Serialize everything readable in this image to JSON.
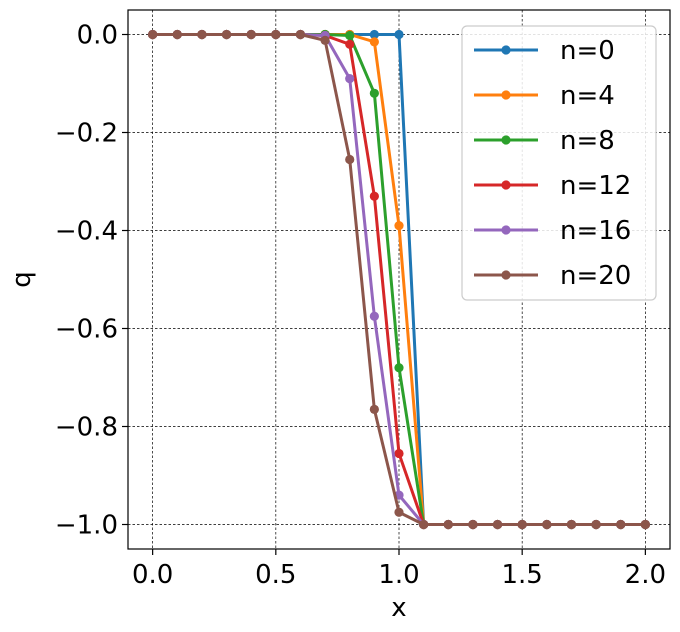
{
  "chart_data": {
    "type": "line",
    "xlabel": "x",
    "ylabel": "q",
    "xlim": [
      -0.1,
      2.1
    ],
    "ylim": [
      -1.05,
      0.05
    ],
    "x_ticks": [
      0.0,
      0.5,
      1.0,
      1.5,
      2.0
    ],
    "x_tick_labels": [
      "0.0",
      "0.5",
      "1.0",
      "1.5",
      "2.0"
    ],
    "y_ticks": [
      0.0,
      -0.2,
      -0.4,
      -0.6,
      -0.8,
      -1.0
    ],
    "y_tick_labels": [
      "0.0",
      "−0.2",
      "−0.4",
      "−0.6",
      "−0.8",
      "−1.0"
    ],
    "grid": true,
    "legend_position": "top-right",
    "x": [
      0.0,
      0.1,
      0.2,
      0.3,
      0.4,
      0.5,
      0.6,
      0.7,
      0.8,
      0.9,
      1.0,
      1.1,
      1.2,
      1.3,
      1.4,
      1.5,
      1.6,
      1.7,
      1.8,
      1.9,
      2.0
    ],
    "series": [
      {
        "name": "n=0",
        "color": "#1f77b4",
        "values": [
          0,
          0,
          0,
          0,
          0,
          0,
          0,
          0,
          0,
          0,
          0,
          -1,
          -1,
          -1,
          -1,
          -1,
          -1,
          -1,
          -1,
          -1,
          -1
        ]
      },
      {
        "name": "n=4",
        "color": "#ff7f0e",
        "values": [
          0,
          0,
          0,
          0,
          0,
          0,
          0,
          0,
          0,
          -0.015,
          -0.39,
          -1,
          -1,
          -1,
          -1,
          -1,
          -1,
          -1,
          -1,
          -1,
          -1
        ]
      },
      {
        "name": "n=8",
        "color": "#2ca02c",
        "values": [
          0,
          0,
          0,
          0,
          0,
          0,
          0,
          0,
          -0.002,
          -0.12,
          -0.68,
          -1,
          -1,
          -1,
          -1,
          -1,
          -1,
          -1,
          -1,
          -1,
          -1
        ]
      },
      {
        "name": "n=12",
        "color": "#d62728",
        "values": [
          0,
          0,
          0,
          0,
          0,
          0,
          0,
          -0.002,
          -0.02,
          -0.33,
          -0.855,
          -1,
          -1,
          -1,
          -1,
          -1,
          -1,
          -1,
          -1,
          -1,
          -1
        ]
      },
      {
        "name": "n=16",
        "color": "#9467bd",
        "values": [
          0,
          0,
          0,
          0,
          0,
          0,
          0,
          -0.002,
          -0.09,
          -0.575,
          -0.94,
          -1,
          -1,
          -1,
          -1,
          -1,
          -1,
          -1,
          -1,
          -1,
          -1
        ]
      },
      {
        "name": "n=20",
        "color": "#8c564b",
        "values": [
          0,
          0,
          0,
          0,
          0,
          0,
          0,
          -0.012,
          -0.255,
          -0.765,
          -0.975,
          -1,
          -1,
          -1,
          -1,
          -1,
          -1,
          -1,
          -1,
          -1,
          -1
        ]
      }
    ]
  }
}
